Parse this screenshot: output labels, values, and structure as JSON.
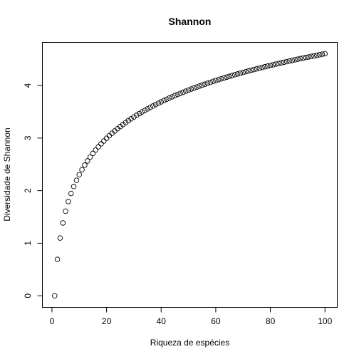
{
  "chart_data": {
    "type": "scatter",
    "title": "Shannon",
    "xlabel": "Riqueza de espécies",
    "ylabel": "Diversidade de Shannon",
    "xlim": [
      -3.5,
      104.5
    ],
    "ylim": [
      -0.22,
      4.82
    ],
    "x_ticks": [
      0,
      20,
      40,
      60,
      80,
      100
    ],
    "x_tick_labels": [
      "0",
      "20",
      "40",
      "60",
      "80",
      "100"
    ],
    "y_ticks": [
      0,
      1,
      2,
      3,
      4
    ],
    "y_tick_labels": [
      "0",
      "1",
      "2",
      "3",
      "4"
    ],
    "grid": false,
    "legend": "none",
    "point_style": "open-circle",
    "series": [
      {
        "x": [
          1,
          2,
          3,
          4,
          5,
          6,
          7,
          8,
          9,
          10,
          11,
          12,
          13,
          14,
          15,
          16,
          17,
          18,
          19,
          20,
          21,
          22,
          23,
          24,
          25,
          26,
          27,
          28,
          29,
          30,
          31,
          32,
          33,
          34,
          35,
          36,
          37,
          38,
          39,
          40,
          41,
          42,
          43,
          44,
          45,
          46,
          47,
          48,
          49,
          50,
          51,
          52,
          53,
          54,
          55,
          56,
          57,
          58,
          59,
          60,
          61,
          62,
          63,
          64,
          65,
          66,
          67,
          68,
          69,
          70,
          71,
          72,
          73,
          74,
          75,
          76,
          77,
          78,
          79,
          80,
          81,
          82,
          83,
          84,
          85,
          86,
          87,
          88,
          89,
          90,
          91,
          92,
          93,
          94,
          95,
          96,
          97,
          98,
          99,
          100
        ],
        "y": [
          0.0,
          0.693,
          1.099,
          1.386,
          1.609,
          1.792,
          1.946,
          2.079,
          2.197,
          2.303,
          2.398,
          2.485,
          2.565,
          2.639,
          2.708,
          2.773,
          2.833,
          2.89,
          2.944,
          2.996,
          3.045,
          3.091,
          3.135,
          3.178,
          3.219,
          3.258,
          3.296,
          3.332,
          3.367,
          3.401,
          3.434,
          3.466,
          3.497,
          3.526,
          3.555,
          3.584,
          3.611,
          3.638,
          3.664,
          3.689,
          3.714,
          3.738,
          3.761,
          3.784,
          3.807,
          3.829,
          3.85,
          3.871,
          3.892,
          3.912,
          3.932,
          3.951,
          3.97,
          3.989,
          4.007,
          4.025,
          4.043,
          4.06,
          4.078,
          4.094,
          4.111,
          4.127,
          4.143,
          4.159,
          4.174,
          4.19,
          4.205,
          4.22,
          4.234,
          4.248,
          4.263,
          4.277,
          4.29,
          4.304,
          4.317,
          4.331,
          4.344,
          4.357,
          4.369,
          4.382,
          4.394,
          4.407,
          4.419,
          4.431,
          4.443,
          4.454,
          4.466,
          4.477,
          4.489,
          4.5,
          4.511,
          4.522,
          4.533,
          4.543,
          4.554,
          4.564,
          4.575,
          4.585,
          4.595,
          4.605
        ]
      }
    ]
  }
}
